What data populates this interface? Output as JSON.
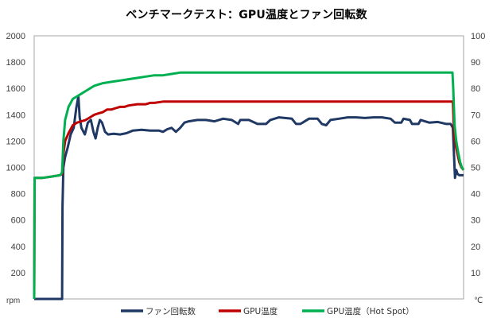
{
  "chart_data": {
    "type": "line",
    "title": "ベンチマークテスト：GPU温度とファン回転数",
    "left_axis": {
      "unit": "rpm",
      "min": 0,
      "max": 2000,
      "ticks": [
        0,
        200,
        400,
        600,
        800,
        1000,
        1200,
        1400,
        1600,
        1800,
        2000
      ],
      "tick_labels": [
        "",
        "200",
        "400",
        "600",
        "800",
        "1000",
        "1200",
        "1400",
        "1600",
        "1800",
        "2000"
      ]
    },
    "right_axis": {
      "unit": "℃",
      "min": 0,
      "max": 100,
      "ticks": [
        0,
        10,
        20,
        30,
        40,
        50,
        60,
        70,
        80,
        90,
        100
      ],
      "tick_labels": [
        "",
        "10",
        "20",
        "30",
        "40",
        "50",
        "60",
        "70",
        "80",
        "90",
        "100"
      ]
    },
    "grid": false,
    "legend_position": "bottom",
    "x_range": [
      0,
      100
    ],
    "series": [
      {
        "name": "ファン回転数",
        "axis": "left",
        "color": "#1f3864",
        "points": [
          [
            0,
            0
          ],
          [
            5,
            0
          ],
          [
            6.5,
            0
          ],
          [
            6.6,
            700
          ],
          [
            6.8,
            1000
          ],
          [
            7.2,
            1080
          ],
          [
            7.8,
            1150
          ],
          [
            8.5,
            1250
          ],
          [
            9.2,
            1300
          ],
          [
            9.8,
            1450
          ],
          [
            10.3,
            1540
          ],
          [
            10.6,
            1380
          ],
          [
            11.0,
            1300
          ],
          [
            11.8,
            1250
          ],
          [
            12.5,
            1340
          ],
          [
            13.2,
            1360
          ],
          [
            13.8,
            1270
          ],
          [
            14.3,
            1220
          ],
          [
            14.8,
            1300
          ],
          [
            15.3,
            1360
          ],
          [
            15.8,
            1340
          ],
          [
            16.5,
            1270
          ],
          [
            17.2,
            1250
          ],
          [
            18.5,
            1255
          ],
          [
            20,
            1250
          ],
          [
            21.5,
            1260
          ],
          [
            23,
            1280
          ],
          [
            25,
            1285
          ],
          [
            27,
            1280
          ],
          [
            29,
            1280
          ],
          [
            30,
            1270
          ],
          [
            31,
            1290
          ],
          [
            32,
            1300
          ],
          [
            33,
            1270
          ],
          [
            34,
            1300
          ],
          [
            35,
            1340
          ],
          [
            36,
            1350
          ],
          [
            38,
            1360
          ],
          [
            40,
            1360
          ],
          [
            42,
            1350
          ],
          [
            44,
            1370
          ],
          [
            46,
            1360
          ],
          [
            47.5,
            1330
          ],
          [
            48,
            1360
          ],
          [
            50,
            1360
          ],
          [
            52,
            1330
          ],
          [
            54,
            1330
          ],
          [
            55,
            1360
          ],
          [
            57,
            1380
          ],
          [
            60,
            1370
          ],
          [
            61,
            1330
          ],
          [
            62,
            1330
          ],
          [
            64,
            1370
          ],
          [
            66,
            1370
          ],
          [
            67,
            1330
          ],
          [
            68,
            1320
          ],
          [
            69,
            1360
          ],
          [
            71,
            1370
          ],
          [
            73,
            1380
          ],
          [
            75,
            1380
          ],
          [
            77,
            1375
          ],
          [
            79,
            1380
          ],
          [
            81,
            1380
          ],
          [
            83,
            1370
          ],
          [
            84,
            1340
          ],
          [
            85.5,
            1340
          ],
          [
            86,
            1370
          ],
          [
            87.5,
            1360
          ],
          [
            88,
            1330
          ],
          [
            89.5,
            1330
          ],
          [
            90,
            1360
          ],
          [
            92,
            1340
          ],
          [
            94,
            1345
          ],
          [
            96,
            1330
          ],
          [
            97,
            1330
          ],
          [
            97.5,
            1300
          ],
          [
            98,
            920
          ],
          [
            98.3,
            980
          ],
          [
            98.6,
            950
          ],
          [
            99,
            940
          ],
          [
            100,
            940
          ]
        ]
      },
      {
        "name": "GPU温度",
        "axis": "right",
        "color": "#c00000",
        "points": [
          [
            0,
            0
          ],
          [
            0.1,
            46
          ],
          [
            2,
            46
          ],
          [
            4,
            46.5
          ],
          [
            6,
            47
          ],
          [
            6.5,
            47.5
          ],
          [
            6.8,
            55
          ],
          [
            7.2,
            60
          ],
          [
            8,
            63
          ],
          [
            9,
            66
          ],
          [
            10,
            67
          ],
          [
            11,
            67.5
          ],
          [
            12,
            68
          ],
          [
            13,
            69
          ],
          [
            14,
            70
          ],
          [
            15,
            70.5
          ],
          [
            16,
            71
          ],
          [
            17,
            72
          ],
          [
            18,
            72
          ],
          [
            19,
            72.5
          ],
          [
            20,
            73
          ],
          [
            21,
            73
          ],
          [
            22,
            73.5
          ],
          [
            24,
            74
          ],
          [
            26,
            74
          ],
          [
            27,
            74.5
          ],
          [
            28,
            74.5
          ],
          [
            30,
            75
          ],
          [
            33,
            75
          ],
          [
            36,
            75
          ],
          [
            40,
            75
          ],
          [
            44,
            75
          ],
          [
            48,
            75
          ],
          [
            52,
            75
          ],
          [
            56,
            75
          ],
          [
            60,
            75
          ],
          [
            64,
            75
          ],
          [
            68,
            75
          ],
          [
            72,
            75
          ],
          [
            76,
            75
          ],
          [
            80,
            75
          ],
          [
            84,
            75
          ],
          [
            88,
            75
          ],
          [
            92,
            75
          ],
          [
            95,
            75
          ],
          [
            97.5,
            75
          ],
          [
            97.8,
            63
          ],
          [
            98.2,
            58
          ],
          [
            98.6,
            55
          ],
          [
            99,
            52
          ],
          [
            99.5,
            50
          ],
          [
            100,
            49
          ]
        ]
      },
      {
        "name": "GPU温度（Hot Spot）",
        "axis": "right",
        "color": "#00b050",
        "points": [
          [
            0,
            0
          ],
          [
            0.1,
            46
          ],
          [
            2,
            46
          ],
          [
            4,
            46.5
          ],
          [
            6,
            47
          ],
          [
            6.5,
            48
          ],
          [
            6.8,
            60
          ],
          [
            7.2,
            68
          ],
          [
            8,
            73
          ],
          [
            9,
            76
          ],
          [
            10,
            77
          ],
          [
            11,
            78
          ],
          [
            12,
            79
          ],
          [
            13,
            80
          ],
          [
            14,
            81
          ],
          [
            15,
            81.5
          ],
          [
            16,
            82
          ],
          [
            18,
            82.5
          ],
          [
            20,
            83
          ],
          [
            22,
            83.5
          ],
          [
            24,
            84
          ],
          [
            26,
            84.5
          ],
          [
            28,
            85
          ],
          [
            30,
            85
          ],
          [
            32,
            85.5
          ],
          [
            34,
            86
          ],
          [
            36,
            86
          ],
          [
            38,
            86
          ],
          [
            40,
            86
          ],
          [
            44,
            86
          ],
          [
            48,
            86
          ],
          [
            52,
            86
          ],
          [
            56,
            86
          ],
          [
            60,
            86
          ],
          [
            64,
            86
          ],
          [
            68,
            86
          ],
          [
            72,
            86
          ],
          [
            76,
            86
          ],
          [
            80,
            86
          ],
          [
            84,
            86
          ],
          [
            88,
            86
          ],
          [
            92,
            86
          ],
          [
            95,
            86
          ],
          [
            97.4,
            86
          ],
          [
            97.6,
            80
          ],
          [
            97.9,
            66
          ],
          [
            98.3,
            60
          ],
          [
            98.7,
            56
          ],
          [
            99.2,
            52
          ],
          [
            99.6,
            50
          ],
          [
            100,
            49
          ]
        ]
      }
    ]
  }
}
